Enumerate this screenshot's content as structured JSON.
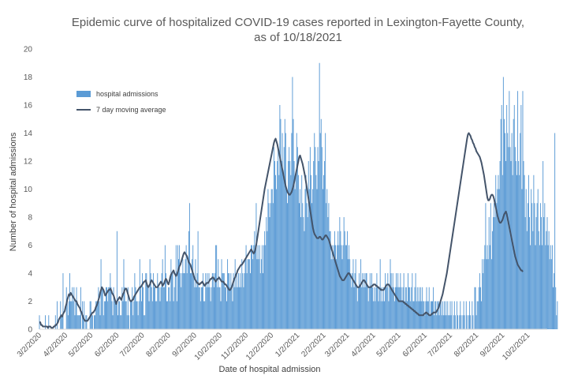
{
  "chart_data": {
    "type": "bar",
    "title_line1": "Epidemic curve of hospitalized COVID-19 cases reported in Lexington-Fayette County,",
    "title_line2": "as of 10/18/2021",
    "xlabel": "Date of hospital admission",
    "ylabel": "Number of hospital admissions",
    "ylim": [
      0,
      20
    ],
    "yticks": [
      "0",
      "2",
      "4",
      "6",
      "8",
      "10",
      "12",
      "14",
      "16",
      "18",
      "20"
    ],
    "xlim": [
      "3/2/2020",
      "10/25/2021"
    ],
    "xticks": [
      "3/2/2020",
      "4/2/2020",
      "5/2/2020",
      "6/2/2020",
      "7/2/2020",
      "8/2/2020",
      "9/2/2020",
      "10/2/2020",
      "11/2/2020",
      "12/2/2020",
      "1/2/2021",
      "2/2/2021",
      "3/2/2021",
      "4/2/2021",
      "5/2/2021",
      "6/2/2021",
      "7/2/2021",
      "8/2/2021",
      "9/2/2021",
      "10/2/2021"
    ],
    "grid": false,
    "legend_position": "top-left",
    "colors": {
      "bars": "#5b9bd5",
      "line": "#44546a",
      "text": "#595959",
      "axis": "#d9d9d9"
    },
    "series": [
      {
        "name": "hospital admissions",
        "type": "bar",
        "x_start": "3/2/2020",
        "interval": "daily",
        "values": [
          1,
          0,
          0,
          0,
          0,
          0,
          0,
          1,
          0,
          0,
          0,
          1,
          0,
          0,
          0,
          0,
          0,
          0,
          0,
          1,
          0,
          2,
          0,
          0,
          0,
          2,
          1,
          1,
          4,
          0,
          0,
          0,
          3,
          2,
          1,
          2,
          4,
          2,
          2,
          3,
          2,
          3,
          1,
          2,
          3,
          1,
          1,
          1,
          1,
          3,
          0,
          2,
          1,
          2,
          0,
          1,
          1,
          0,
          0,
          0,
          2,
          2,
          1,
          1,
          0,
          1,
          1,
          2,
          2,
          2,
          3,
          2,
          1,
          5,
          3,
          3,
          1,
          2,
          2,
          3,
          3,
          2,
          3,
          3,
          4,
          3,
          2,
          1,
          3,
          2,
          2,
          2,
          7,
          1,
          2,
          2,
          1,
          1,
          3,
          2,
          5,
          3,
          2,
          2,
          1,
          3,
          1,
          0,
          2,
          2,
          3,
          1,
          2,
          4,
          3,
          2,
          2,
          1,
          2,
          5,
          3,
          2,
          4,
          3,
          1,
          1,
          4,
          4,
          3,
          3,
          2,
          5,
          4,
          3,
          2,
          4,
          3,
          3,
          2,
          2,
          4,
          3,
          3,
          2,
          3,
          4,
          5,
          3,
          3,
          6,
          4,
          2,
          2,
          3,
          3,
          2,
          5,
          4,
          4,
          2,
          3,
          4,
          6,
          2,
          6,
          5,
          6,
          4,
          3,
          4,
          5,
          4,
          4,
          5,
          6,
          4,
          5,
          7,
          9,
          4,
          4,
          5,
          6,
          4,
          3,
          5,
          3,
          4,
          7,
          3,
          3,
          2,
          3,
          3,
          4,
          2,
          2,
          4,
          3,
          4,
          3,
          4,
          3,
          2,
          3,
          4,
          4,
          3,
          4,
          6,
          6,
          3,
          5,
          3,
          3,
          2,
          5,
          4,
          4,
          4,
          3,
          3,
          2,
          5,
          4,
          4,
          3,
          4,
          3,
          2,
          4,
          3,
          5,
          3,
          4,
          3,
          4,
          3,
          4,
          3,
          5,
          4,
          3,
          4,
          5,
          6,
          4,
          5,
          5,
          5,
          4,
          6,
          6,
          5,
          6,
          7,
          6,
          9,
          5,
          6,
          5,
          6,
          4,
          5,
          6,
          4,
          6,
          7,
          6,
          8,
          7,
          10,
          9,
          8,
          9,
          10,
          10,
          9,
          13,
          12,
          11,
          10,
          12,
          13,
          11,
          16,
          15,
          12,
          14,
          11,
          13,
          15,
          14,
          10,
          9,
          12,
          13,
          12,
          11,
          14,
          18,
          15,
          12,
          10,
          11,
          14,
          13,
          11,
          9,
          10,
          8,
          11,
          9,
          8,
          7,
          10,
          11,
          9,
          8,
          12,
          10,
          13,
          11,
          9,
          10,
          12,
          14,
          13,
          11,
          10,
          13,
          12,
          19,
          14,
          15,
          13,
          10,
          11,
          12,
          14,
          9,
          10,
          8,
          9,
          7,
          7,
          5,
          6,
          5,
          6,
          7,
          6,
          5,
          6,
          7,
          6,
          8,
          7,
          6,
          5,
          6,
          8,
          7,
          6,
          6,
          7,
          5,
          6,
          5,
          4,
          3,
          4,
          5,
          3,
          4,
          5,
          3,
          2,
          3,
          4,
          3,
          5,
          3,
          4,
          3,
          4,
          3,
          4,
          4,
          3,
          2,
          3,
          4,
          3,
          4,
          3,
          2,
          3,
          2,
          3,
          4,
          3,
          2,
          3,
          5,
          2,
          3,
          2,
          3,
          2,
          4,
          3,
          3,
          4,
          2,
          3,
          5,
          4,
          3,
          4,
          3,
          2,
          3,
          4,
          3,
          4,
          3,
          3,
          4,
          3,
          2,
          3,
          4,
          2,
          3,
          3,
          2,
          4,
          3,
          3,
          2,
          3,
          4,
          2,
          2,
          3,
          4,
          2,
          3,
          2,
          3,
          2,
          3,
          2,
          3,
          2,
          2,
          1,
          2,
          3,
          2,
          2,
          3,
          1,
          2,
          2,
          2,
          3,
          1,
          2,
          2,
          1,
          2,
          2,
          1,
          2,
          2,
          1,
          2,
          1,
          2,
          1,
          2,
          1,
          2,
          1,
          1,
          2,
          1,
          2,
          0,
          1,
          2,
          1,
          0,
          2,
          1,
          0,
          1,
          2,
          1,
          0,
          1,
          2,
          1,
          0,
          2,
          1,
          0,
          1,
          2,
          1,
          0,
          2,
          1,
          0,
          3,
          3,
          1,
          2,
          2,
          3,
          4,
          3,
          2,
          5,
          4,
          5,
          6,
          9,
          5,
          6,
          5,
          8,
          6,
          9,
          5,
          7,
          8,
          9,
          8,
          11,
          9,
          10,
          11,
          10,
          12,
          15,
          16,
          11,
          18,
          15,
          14,
          12,
          16,
          14,
          13,
          17,
          13,
          12,
          14,
          11,
          15,
          16,
          13,
          12,
          11,
          17,
          12,
          11,
          14,
          16,
          10,
          17,
          12,
          11,
          8,
          10,
          7,
          9,
          11,
          8,
          6,
          10,
          9,
          7,
          11,
          9,
          6,
          8,
          9,
          10,
          7,
          6,
          9,
          8,
          6,
          12,
          8,
          9,
          6,
          7,
          8,
          6,
          7,
          5,
          6,
          5,
          6,
          3,
          4,
          14,
          3,
          1,
          2
        ]
      },
      {
        "name": "7 day moving average",
        "type": "line",
        "x_start": "3/2/2020",
        "interval": "daily",
        "values": [
          0.5,
          0.5,
          0.3,
          0.3,
          0.2,
          0.2,
          0.2,
          0.2,
          0.2,
          0.2,
          0.1,
          0.2,
          0.2,
          0.2,
          0.1,
          0.1,
          0.1,
          0.2,
          0.2,
          0.3,
          0.3,
          0.4,
          0.5,
          0.7,
          0.8,
          0.9,
          1.0,
          0.9,
          1.1,
          1.2,
          1.3,
          1.6,
          1.8,
          2.1,
          2.3,
          2.5,
          2.4,
          2.6,
          2.5,
          2.4,
          2.3,
          2.2,
          2.1,
          2.0,
          2.0,
          1.8,
          1.7,
          1.6,
          1.5,
          1.3,
          1.2,
          1.0,
          0.8,
          0.7,
          0.6,
          0.6,
          0.6,
          0.6,
          0.7,
          0.8,
          0.9,
          1.0,
          1.1,
          1.2,
          1.2,
          1.3,
          1.4,
          1.6,
          1.7,
          1.9,
          2.1,
          2.3,
          2.6,
          2.8,
          3.0,
          2.9,
          2.8,
          2.6,
          2.4,
          2.5,
          2.6,
          2.7,
          2.8,
          2.8,
          2.9,
          2.8,
          2.6,
          2.5,
          2.4,
          2.2,
          2.0,
          1.8,
          2.0,
          2.1,
          2.2,
          2.3,
          2.2,
          2.1,
          2.3,
          2.5,
          2.6,
          2.8,
          2.9,
          2.9,
          2.7,
          2.5,
          2.3,
          2.1,
          2.0,
          2.0,
          2.1,
          2.1,
          2.3,
          2.4,
          2.5,
          2.6,
          2.7,
          2.8,
          2.9,
          3.0,
          3.0,
          3.1,
          3.2,
          3.3,
          3.4,
          3.4,
          3.5,
          3.3,
          3.1,
          3.0,
          3.1,
          3.2,
          3.4,
          3.5,
          3.4,
          3.3,
          3.2,
          3.1,
          3.0,
          3.0,
          3.0,
          3.1,
          3.2,
          3.3,
          3.4,
          3.3,
          3.1,
          3.2,
          3.3,
          3.5,
          3.6,
          3.5,
          3.3,
          3.2,
          3.4,
          3.7,
          3.9,
          4.0,
          4.1,
          4.2,
          4.0,
          3.9,
          3.8,
          3.9,
          4.1,
          4.3,
          4.5,
          4.6,
          4.8,
          5.0,
          5.2,
          5.4,
          5.5,
          5.4,
          5.3,
          5.2,
          5.0,
          4.8,
          4.7,
          4.6,
          4.4,
          4.2,
          4.0,
          3.8,
          3.6,
          3.5,
          3.4,
          3.3,
          3.3,
          3.2,
          3.2,
          3.3,
          3.3,
          3.4,
          3.3,
          3.2,
          3.1,
          3.2,
          3.3,
          3.3,
          3.3,
          3.4,
          3.5,
          3.6,
          3.6,
          3.7,
          3.7,
          3.6,
          3.5,
          3.4,
          3.5,
          3.6,
          3.6,
          3.7,
          3.6,
          3.5,
          3.4,
          3.4,
          3.4,
          3.3,
          3.2,
          3.2,
          3.1,
          3.0,
          2.9,
          2.8,
          2.8,
          2.9,
          3.0,
          3.2,
          3.4,
          3.6,
          3.7,
          3.9,
          4.0,
          4.2,
          4.3,
          4.4,
          4.5,
          4.6,
          4.6,
          4.7,
          4.8,
          4.9,
          5.0,
          5.1,
          5.2,
          5.3,
          5.4,
          5.5,
          5.6,
          5.7,
          5.6,
          5.5,
          5.4,
          5.5,
          5.7,
          6.0,
          6.4,
          6.8,
          7.2,
          7.6,
          8.0,
          8.4,
          8.8,
          9.2,
          9.6,
          10.0,
          10.3,
          10.6,
          10.9,
          11.2,
          11.5,
          11.8,
          12.1,
          12.4,
          12.7,
          13.0,
          13.3,
          13.5,
          13.6,
          13.4,
          13.2,
          12.9,
          12.6,
          12.3,
          12.0,
          11.7,
          11.4,
          11.1,
          10.8,
          10.5,
          10.2,
          10.0,
          9.8,
          9.7,
          9.6,
          9.6,
          9.7,
          9.8,
          10.0,
          10.2,
          10.5,
          10.8,
          11.1,
          11.4,
          11.7,
          12.0,
          12.3,
          12.4,
          12.2,
          12.0,
          11.8,
          11.5,
          11.2,
          10.9,
          10.5,
          10.1,
          9.7,
          9.3,
          8.9,
          8.5,
          8.1,
          7.7,
          7.3,
          7.0,
          6.8,
          6.7,
          6.6,
          6.5,
          6.5,
          6.5,
          6.6,
          6.6,
          6.5,
          6.4,
          6.4,
          6.5,
          6.6,
          6.7,
          6.7,
          6.6,
          6.5,
          6.4,
          6.2,
          6.0,
          5.8,
          5.6,
          5.4,
          5.2,
          5.0,
          4.8,
          4.6,
          4.4,
          4.2,
          4.0,
          3.8,
          3.7,
          3.6,
          3.5,
          3.5,
          3.5,
          3.6,
          3.7,
          3.8,
          3.9,
          4.0,
          4.0,
          3.9,
          3.8,
          3.7,
          3.6,
          3.5,
          3.4,
          3.3,
          3.2,
          3.1,
          3.0,
          3.0,
          3.0,
          3.1,
          3.2,
          3.3,
          3.4,
          3.5,
          3.5,
          3.4,
          3.3,
          3.2,
          3.1,
          3.0,
          3.0,
          3.0,
          3.0,
          3.1,
          3.1,
          3.2,
          3.2,
          3.2,
          3.1,
          3.1,
          3.0,
          3.0,
          2.9,
          2.9,
          2.8,
          2.8,
          2.8,
          2.8,
          2.9,
          3.0,
          3.1,
          3.2,
          3.2,
          3.2,
          3.1,
          3.0,
          2.9,
          2.8,
          2.7,
          2.6,
          2.5,
          2.4,
          2.3,
          2.2,
          2.1,
          2.0,
          2.0,
          2.0,
          2.0,
          2.0,
          2.0,
          1.9,
          1.9,
          1.8,
          1.8,
          1.7,
          1.7,
          1.6,
          1.6,
          1.5,
          1.5,
          1.4,
          1.4,
          1.3,
          1.3,
          1.2,
          1.2,
          1.1,
          1.1,
          1.0,
          1.0,
          1.0,
          1.0,
          1.0,
          1.0,
          1.1,
          1.1,
          1.2,
          1.2,
          1.1,
          1.1,
          1.0,
          1.0,
          1.0,
          1.1,
          1.1,
          1.2,
          1.2,
          1.2,
          1.2,
          1.3,
          1.4,
          1.5,
          1.7,
          1.9,
          2.1,
          2.3,
          2.5,
          2.8,
          3.1,
          3.4,
          3.7,
          4.0,
          4.4,
          4.8,
          5.2,
          5.6,
          6.0,
          6.4,
          6.8,
          7.2,
          7.6,
          8.0,
          8.4,
          8.8,
          9.2,
          9.6,
          10.0,
          10.4,
          10.8,
          11.2,
          11.6,
          12.0,
          12.4,
          12.8,
          13.2,
          13.6,
          13.9,
          14.0,
          13.9,
          13.8,
          13.6,
          13.5,
          13.3,
          13.2,
          13.0,
          12.9,
          12.7,
          12.6,
          12.5,
          12.4,
          12.3,
          12.1,
          11.9,
          11.6,
          11.3,
          11.0,
          10.6,
          10.2,
          9.8,
          9.4,
          9.2,
          9.2,
          9.3,
          9.5,
          9.6,
          9.6,
          9.5,
          9.3,
          9.0,
          8.7,
          8.4,
          8.1,
          7.9,
          7.7,
          7.6,
          7.6,
          7.7,
          7.8,
          8.0,
          8.2,
          8.3,
          8.4,
          8.2,
          7.9,
          7.6,
          7.3,
          7.0,
          6.7,
          6.4,
          6.1,
          5.8,
          5.5,
          5.2,
          5.0,
          4.8,
          4.6,
          4.5,
          4.4,
          4.3,
          4.2,
          4.2,
          4.1
        ]
      }
    ]
  }
}
